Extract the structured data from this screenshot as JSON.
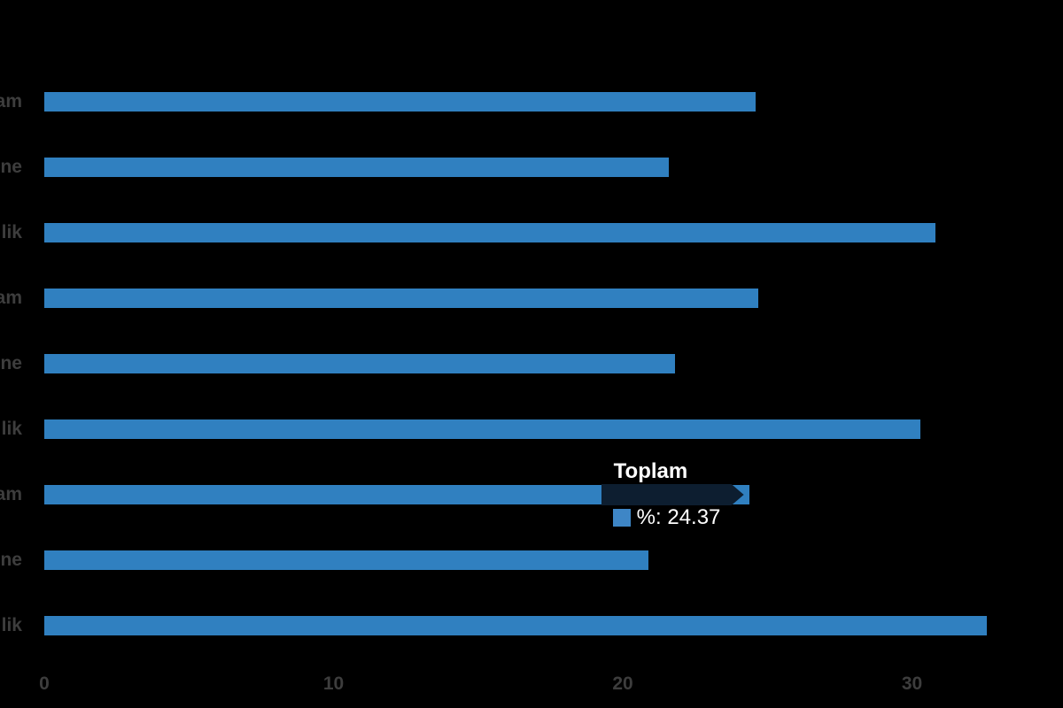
{
  "canvas": {
    "background": "#000000"
  },
  "chart_data": {
    "type": "bar",
    "orientation": "horizontal",
    "title": "",
    "xlabel": "",
    "ylabel": "",
    "categories": [
      "am",
      "ne",
      "lik",
      "am",
      "ne",
      "lik",
      "am",
      "ne",
      "lik"
    ],
    "series": [
      {
        "name": "%",
        "values": [
          24.6,
          21.6,
          30.8,
          24.7,
          21.8,
          30.3,
          24.37,
          20.9,
          32.6
        ]
      }
    ],
    "x_ticks": [
      "0",
      "10",
      "20",
      "30"
    ],
    "x_tick_values": [
      0,
      10,
      20,
      30
    ],
    "xlim": [
      0,
      35.2
    ],
    "grid": false,
    "legend_position": "none",
    "bar_color": "#3080c0",
    "label_color": "#3d3d3d"
  },
  "tooltip": {
    "title": "Toplam",
    "line_text": "%: 24.37",
    "series_name": "%",
    "value": "24.37",
    "swatch_color": "#3e86c6",
    "background": "#0d1e30",
    "text_color": "#ffffff",
    "target_row_index": 6
  }
}
